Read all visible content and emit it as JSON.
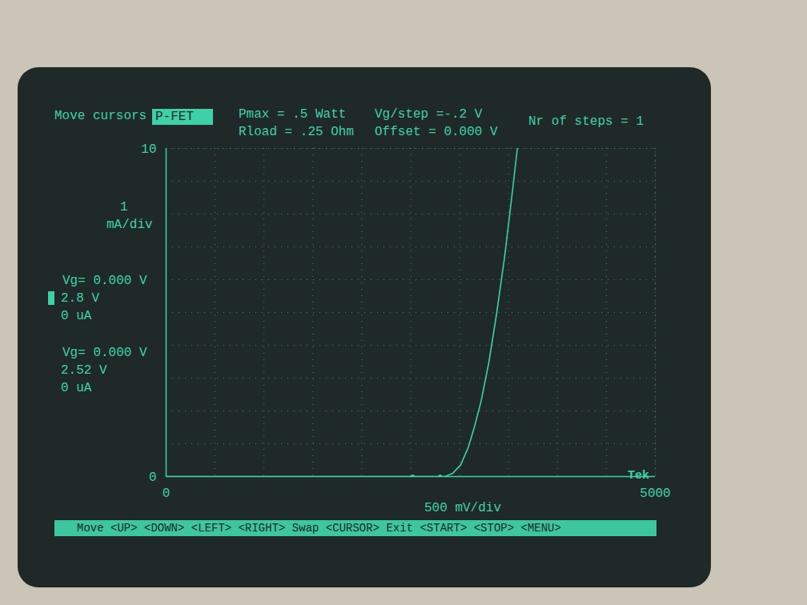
{
  "chart_data": {
    "type": "line",
    "mode_label": "Move cursors",
    "device": "P-FET",
    "settings": [
      "Pmax = .5 Watt",
      "Rload = .25 Ohm",
      "Vg/step =-.2 V",
      "Offset = 0.000 V",
      "Nr of steps = 1"
    ],
    "ylabel_lines": [
      "1",
      "mA/div"
    ],
    "xlabel": "500 mV/div",
    "logo": "Tek",
    "status_bar": "Move <UP> <DOWN> <LEFT> <RIGHT> Swap <CURSOR> Exit <START> <STOP> <MENU>",
    "cursors": [
      {
        "vg_label": "Vg= 0.000 V",
        "voltage_label": "2.8 V",
        "current_label": "0 uA",
        "x": 2800,
        "y": 0
      },
      {
        "vg_label": "Vg= 0.000 V",
        "voltage_label": "2.52 V",
        "current_label": "0 uA",
        "x": 2520,
        "y": 0
      }
    ],
    "x": [
      0,
      2500,
      2850,
      2930,
      3010,
      3090,
      3150,
      3220,
      3300,
      3380,
      3460,
      3540,
      3590
    ],
    "values": [
      0,
      0,
      0,
      0.1,
      0.35,
      0.9,
      1.5,
      2.3,
      3.5,
      5.0,
      6.7,
      8.7,
      10
    ],
    "color": "#3fd0a8",
    "xlim": [
      0,
      5000
    ],
    "ylim": [
      0,
      10
    ],
    "xticks": [
      0,
      5000
    ],
    "yticks": [
      0,
      10
    ],
    "grid": true
  }
}
